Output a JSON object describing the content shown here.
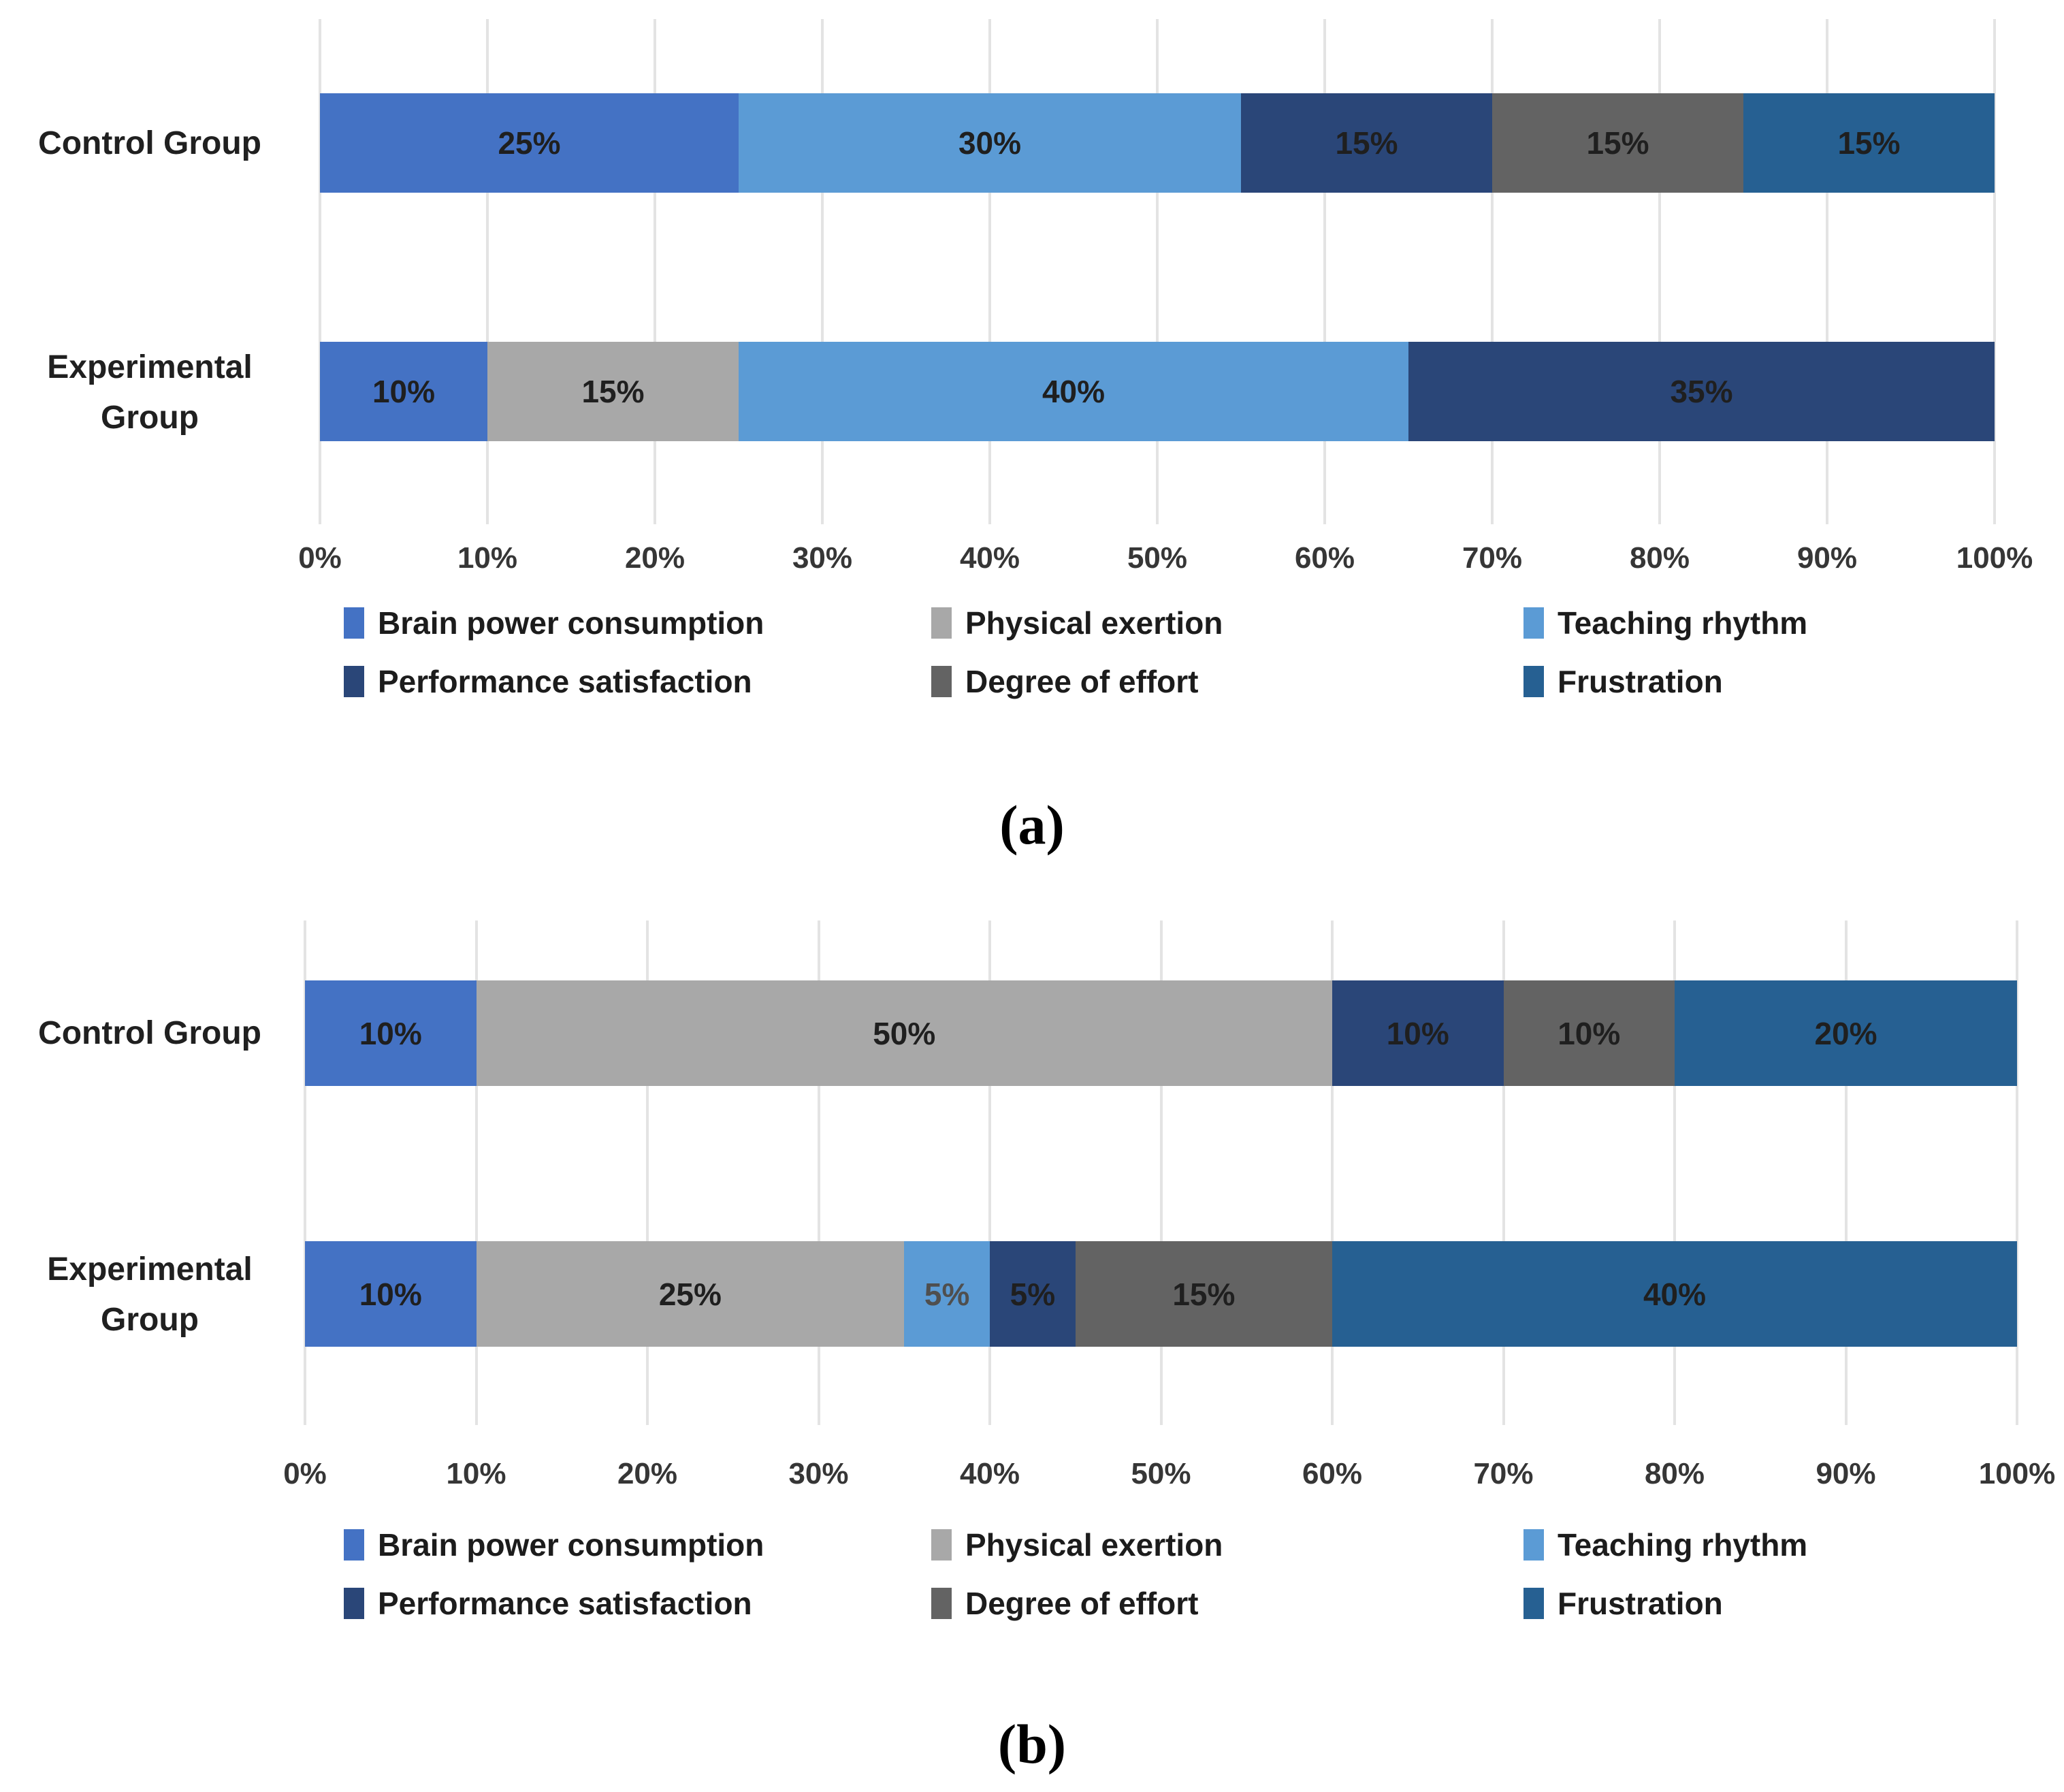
{
  "legend": {
    "position": "bottom",
    "items": [
      {
        "label": "Brain power consumption",
        "color": "#4472C4"
      },
      {
        "label": "Physical exertion",
        "color": "#A8A8A8"
      },
      {
        "label": "Teaching rhythm",
        "color": "#5B9BD5"
      },
      {
        "label": "Performance satisfaction",
        "color": "#2A4678"
      },
      {
        "label": "Degree of effort",
        "color": "#636363"
      },
      {
        "label": "Frustration",
        "color": "#266092"
      }
    ]
  },
  "chart_data": [
    {
      "id": "a",
      "caption": "(a)",
      "type": "bar",
      "stacked": true,
      "orientation": "horizontal",
      "grid": true,
      "value_label_format": "percent",
      "categories": [
        "Control Group",
        "Experimental Group"
      ],
      "xlim": [
        0,
        100
      ],
      "x_ticks": [
        "0%",
        "10%",
        "20%",
        "30%",
        "40%",
        "50%",
        "60%",
        "70%",
        "80%",
        "90%",
        "100%"
      ],
      "series": [
        {
          "name": "Brain power consumption",
          "values": [
            25,
            10
          ]
        },
        {
          "name": "Physical exertion",
          "values": [
            0,
            15
          ]
        },
        {
          "name": "Teaching rhythm",
          "values": [
            30,
            40
          ]
        },
        {
          "name": "Performance satisfaction",
          "values": [
            15,
            35
          ]
        },
        {
          "name": "Degree of effort",
          "values": [
            15,
            0
          ]
        },
        {
          "name": "Frustration",
          "values": [
            15,
            0
          ]
        }
      ],
      "label_overrides": []
    },
    {
      "id": "b",
      "caption": "(b)",
      "type": "bar",
      "stacked": true,
      "orientation": "horizontal",
      "grid": true,
      "value_label_format": "percent",
      "categories": [
        "Control Group",
        "Experimental Group"
      ],
      "xlim": [
        0,
        100
      ],
      "x_ticks": [
        "0%",
        "10%",
        "20%",
        "30%",
        "40%",
        "50%",
        "60%",
        "70%",
        "80%",
        "90%",
        "100%"
      ],
      "series": [
        {
          "name": "Brain power consumption",
          "values": [
            10,
            10
          ]
        },
        {
          "name": "Physical exertion",
          "values": [
            50,
            25
          ]
        },
        {
          "name": "Teaching rhythm",
          "values": [
            0,
            5
          ]
        },
        {
          "name": "Performance satisfaction",
          "values": [
            10,
            5
          ]
        },
        {
          "name": "Degree of effort",
          "values": [
            10,
            15
          ]
        },
        {
          "name": "Frustration",
          "values": [
            20,
            40
          ]
        }
      ],
      "label_overrides": [
        {
          "category_index": 1,
          "series": "Teaching rhythm",
          "color": "#4f4f4f"
        }
      ]
    }
  ]
}
